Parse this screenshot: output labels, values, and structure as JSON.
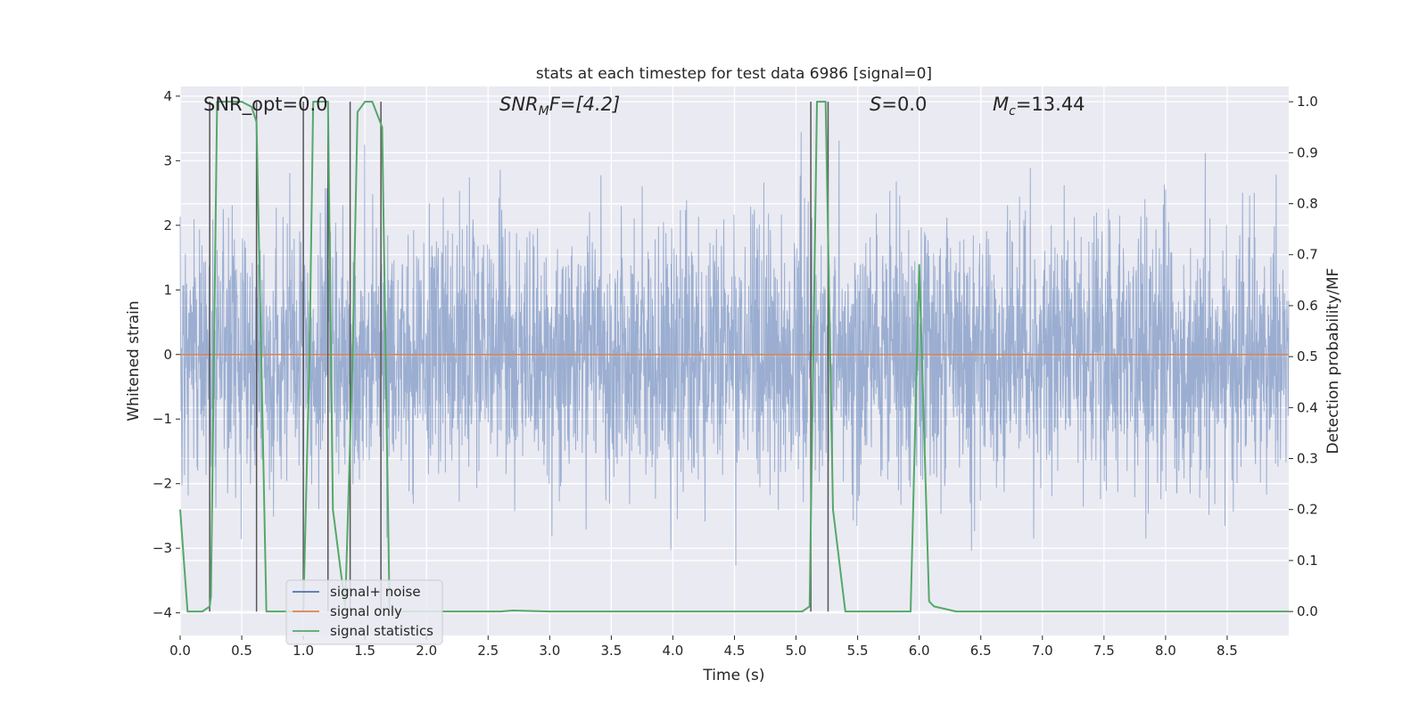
{
  "chart_data": {
    "type": "line",
    "title": "stats at each timestep for test data 6986 [signal=0]",
    "xlabel": "Time (s)",
    "ylabel_left": "Whitened strain",
    "ylabel_right": "Detection probability/MF",
    "xlim": [
      0.0,
      9.0
    ],
    "ylim_left": [
      -4.35,
      4.15
    ],
    "ylim_right": [
      -0.047,
      1.03
    ],
    "x_ticks": [
      "0.0",
      "0.5",
      "1.0",
      "1.5",
      "2.0",
      "2.5",
      "3.0",
      "3.5",
      "4.0",
      "4.5",
      "5.0",
      "5.5",
      "6.0",
      "6.5",
      "7.0",
      "7.5",
      "8.0",
      "8.5"
    ],
    "y_ticks_left": [
      "4",
      "3",
      "2",
      "1",
      "0",
      "−1",
      "−2",
      "−3",
      "−4"
    ],
    "y_ticks_right": [
      "1.0",
      "0.9",
      "0.8",
      "0.7",
      "0.6",
      "0.5",
      "0.4",
      "0.3",
      "0.2",
      "0.1",
      "0.0"
    ],
    "grid": true,
    "legend_position": "lower-left",
    "annotations": {
      "snr_opt": "SNR_opt=0.0",
      "snr_mf_var": "SNR",
      "snr_mf_sub": "M",
      "snr_mf_rest": "F=[4.2]",
      "s_var": "S",
      "s_rest": "=0.0",
      "mc_var": "M",
      "mc_sub": "c",
      "mc_rest": "=13.44"
    },
    "series": [
      {
        "name": "signal+ noise",
        "color": "#4c72b0",
        "description": "whitened noise-dominated strain, roughly within -4 to 3.5",
        "noise_std": 1.0,
        "range": [
          -4.0,
          3.5
        ]
      },
      {
        "name": "signal only",
        "color": "#dd8452",
        "x": [
          0.0,
          9.0
        ],
        "y": [
          0.0,
          0.0
        ]
      },
      {
        "name": "signal statistics",
        "color": "#55a868",
        "x": [
          0.0,
          0.06,
          0.18,
          0.24,
          0.25,
          0.3,
          0.5,
          0.58,
          0.62,
          0.7,
          1.0,
          1.05,
          1.08,
          1.2,
          1.24,
          1.34,
          1.4,
          1.44,
          1.5,
          1.56,
          1.64,
          1.7,
          1.72,
          2.0,
          2.6,
          2.7,
          3.0,
          5.05,
          5.11,
          5.17,
          5.24,
          5.3,
          5.4,
          5.93,
          6.0,
          6.08,
          6.12,
          6.3,
          9.0
        ],
        "y": [
          0.2,
          0.0,
          0.0,
          0.01,
          0.03,
          1.0,
          1.0,
          0.99,
          0.96,
          0.0,
          0.0,
          0.5,
          1.0,
          1.0,
          0.2,
          0.01,
          0.5,
          0.98,
          1.0,
          1.0,
          0.95,
          0.0,
          0.0,
          0.0,
          0.0,
          0.002,
          0.0,
          0.0,
          0.01,
          1.0,
          1.0,
          0.2,
          0.0,
          0.0,
          0.68,
          0.02,
          0.01,
          0.0,
          0.0
        ]
      }
    ],
    "vlines_x": [
      0.24,
      0.62,
      1.0,
      1.2,
      1.38,
      1.63,
      5.12,
      5.26
    ]
  }
}
